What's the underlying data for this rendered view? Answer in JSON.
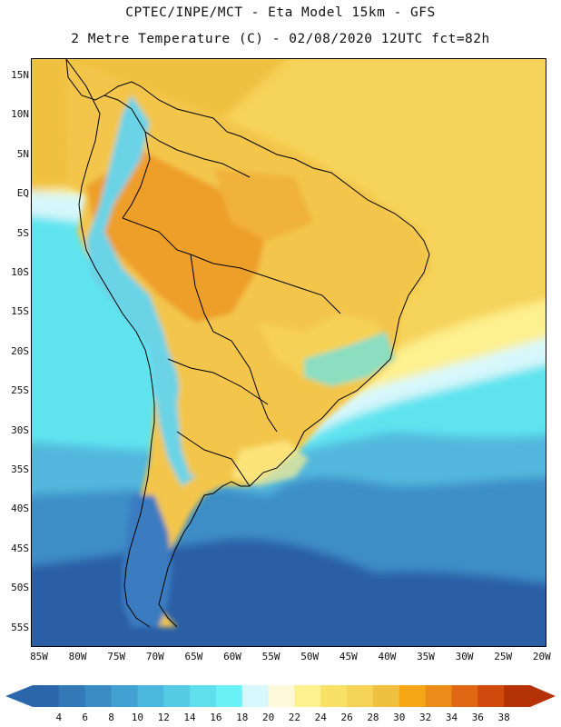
{
  "header": {
    "line1": "CPTEC/INPE/MCT -  Eta Model 15km - GFS",
    "line2": "2 Metre Temperature (C) - 02/08/2020 12UTC fct=82h"
  },
  "map": {
    "lat_labels": [
      "15N",
      "10N",
      "5N",
      "EQ",
      "5S",
      "10S",
      "15S",
      "20S",
      "25S",
      "30S",
      "35S",
      "40S",
      "45S",
      "50S",
      "55S"
    ],
    "lon_labels": [
      "85W",
      "80W",
      "75W",
      "70W",
      "65W",
      "60W",
      "55W",
      "50W",
      "45W",
      "40W",
      "35W",
      "30W",
      "25W",
      "20W"
    ],
    "regions": [
      {
        "name": "ocean-cold-south",
        "color": "#2a5fa6"
      },
      {
        "name": "ocean-cool",
        "color": "#3e8ec7"
      },
      {
        "name": "ocean-mid",
        "color": "#52b7dd"
      },
      {
        "name": "ocean-warm",
        "color": "#5ee4ef"
      },
      {
        "name": "atlantic-tropics",
        "color": "#f6d35a"
      },
      {
        "name": "continent",
        "color": "#f3c64b"
      },
      {
        "name": "amazon-hot",
        "color": "#ee9f2a"
      },
      {
        "name": "andes-cold",
        "color": "#6ad3e6"
      },
      {
        "name": "patagonia",
        "color": "#3a7cc0"
      }
    ]
  },
  "colorbar": {
    "labels": [
      "4",
      "6",
      "8",
      "10",
      "12",
      "14",
      "16",
      "18",
      "20",
      "22",
      "24",
      "26",
      "28",
      "30",
      "32",
      "34",
      "36",
      "38"
    ],
    "colors": [
      "#2b66aa",
      "#3379b8",
      "#3b8bc5",
      "#42a0d2",
      "#4bb7dc",
      "#55cce4",
      "#5fdfec",
      "#69f1f6",
      "#d6f7fb",
      "#fff9dc",
      "#fdf08e",
      "#f9e168",
      "#f5d356",
      "#f0c040",
      "#f4a616",
      "#ec8c18",
      "#e06814",
      "#cf4a0c",
      "#b53207"
    ]
  }
}
